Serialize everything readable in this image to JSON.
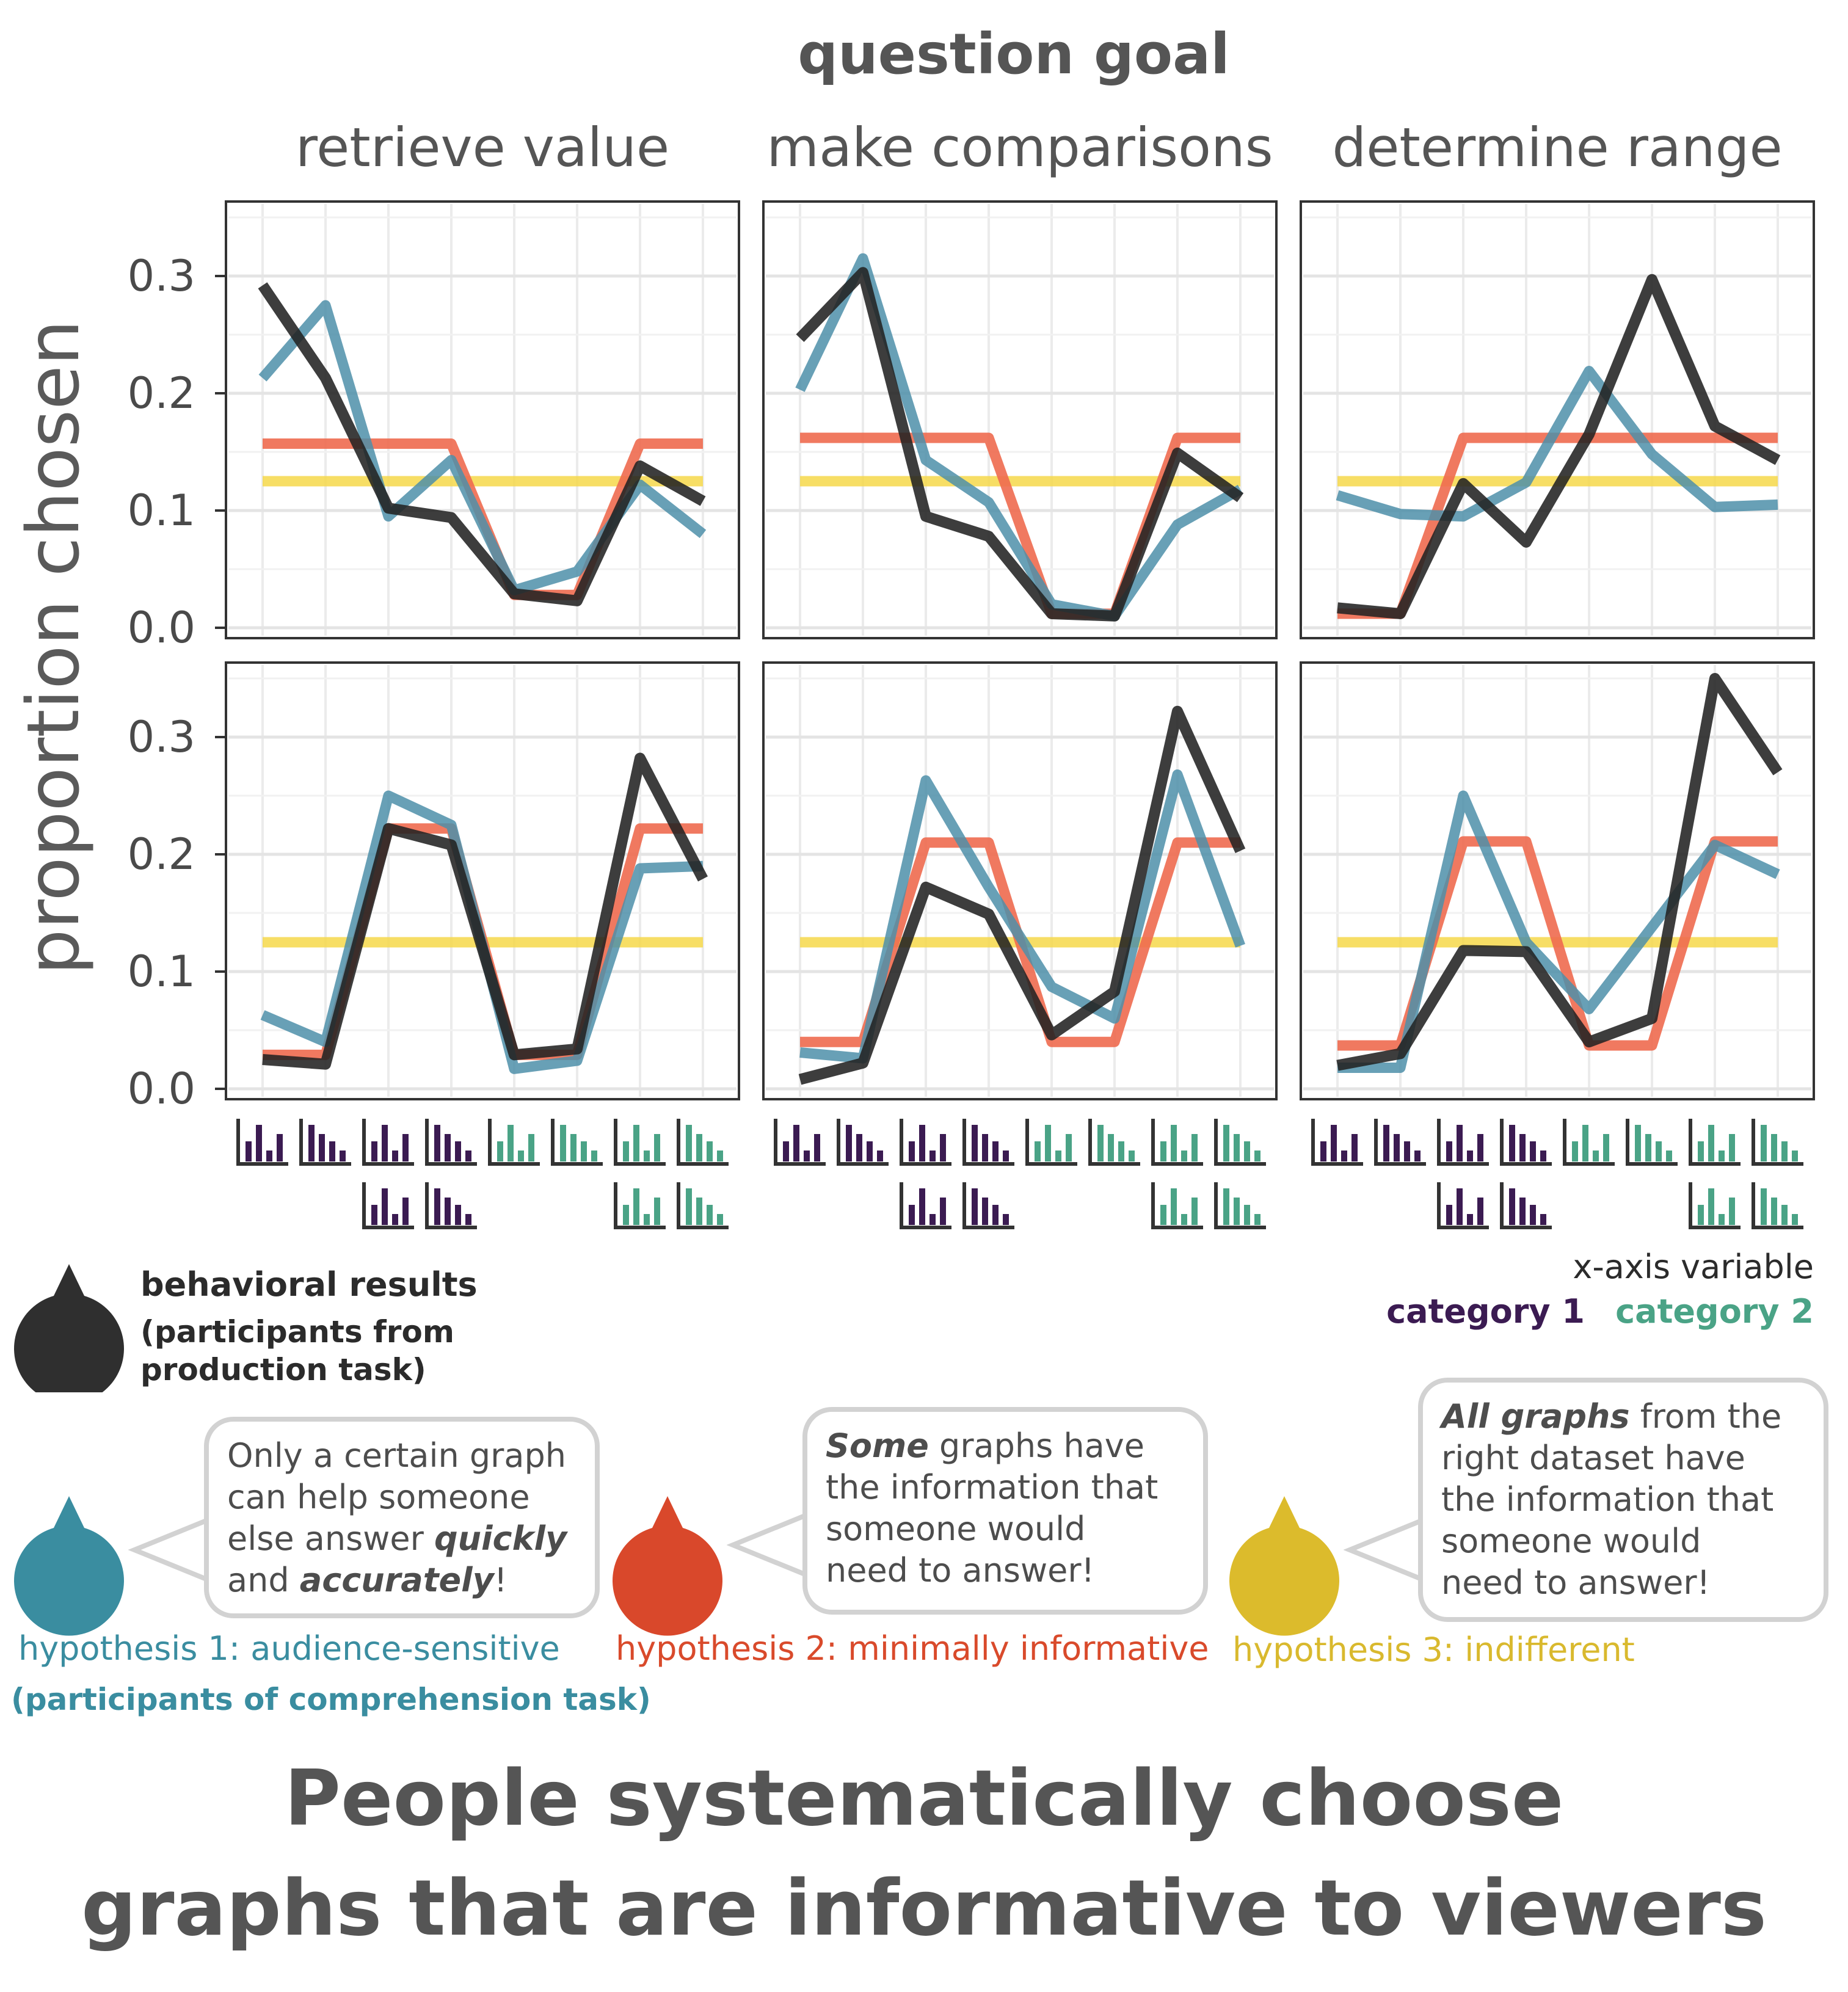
{
  "header": {
    "title": "question goal"
  },
  "y_axis_label": "proportion chosen",
  "y_ticks": [
    "0.0",
    "0.1",
    "0.2",
    "0.3"
  ],
  "panel_titles": [
    "retrieve value",
    "make comparisons",
    "determine range"
  ],
  "colors": {
    "behavioral": "#222222",
    "hypothesis1": "#4e8fa9",
    "hypothesis2": "#ee6a4f",
    "hypothesis3": "#f6d84a",
    "category1": "#3b1b52",
    "category2": "#4aa386",
    "h1_text": "#3a8da0",
    "h2_text": "#d94a2b",
    "h3_text": "#d9b92e"
  },
  "chart_data": {
    "type": "line",
    "ylim": [
      0,
      0.35
    ],
    "grid": true,
    "x_categories": 8,
    "panels": [
      {
        "row": 1,
        "col": 1,
        "goal": "retrieve value",
        "series": [
          {
            "key": "hypothesis3",
            "values": [
              0.125,
              0.125,
              0.125,
              0.125,
              0.125,
              0.125,
              0.125,
              0.125
            ]
          },
          {
            "key": "hypothesis2",
            "values": [
              0.157,
              0.157,
              0.157,
              0.157,
              0.028,
              0.028,
              0.157,
              0.157
            ]
          },
          {
            "key": "hypothesis1",
            "values": [
              0.213,
              0.275,
              0.095,
              0.143,
              0.032,
              0.048,
              0.122,
              0.08
            ]
          },
          {
            "key": "behavioral",
            "values": [
              0.292,
              0.213,
              0.102,
              0.094,
              0.029,
              0.023,
              0.138,
              0.108
            ]
          }
        ]
      },
      {
        "row": 1,
        "col": 2,
        "goal": "make comparisons",
        "series": [
          {
            "key": "hypothesis3",
            "values": [
              0.125,
              0.125,
              0.125,
              0.125,
              0.125,
              0.125,
              0.125,
              0.125
            ]
          },
          {
            "key": "hypothesis2",
            "values": [
              0.162,
              0.162,
              0.162,
              0.162,
              0.012,
              0.012,
              0.162,
              0.162
            ]
          },
          {
            "key": "hypothesis1",
            "values": [
              0.203,
              0.315,
              0.143,
              0.107,
              0.02,
              0.01,
              0.088,
              0.118
            ]
          },
          {
            "key": "behavioral",
            "values": [
              0.247,
              0.303,
              0.095,
              0.078,
              0.012,
              0.01,
              0.149,
              0.111
            ]
          }
        ]
      },
      {
        "row": 1,
        "col": 3,
        "goal": "determine range",
        "series": [
          {
            "key": "hypothesis3",
            "values": [
              0.125,
              0.125,
              0.125,
              0.125,
              0.125,
              0.125,
              0.125,
              0.125
            ]
          },
          {
            "key": "hypothesis2",
            "values": [
              0.012,
              0.012,
              0.162,
              0.162,
              0.162,
              0.162,
              0.162,
              0.162
            ]
          },
          {
            "key": "hypothesis1",
            "values": [
              0.113,
              0.097,
              0.095,
              0.124,
              0.219,
              0.148,
              0.103,
              0.105
            ]
          },
          {
            "key": "behavioral",
            "values": [
              0.017,
              0.012,
              0.123,
              0.073,
              0.165,
              0.297,
              0.172,
              0.143
            ]
          }
        ]
      },
      {
        "row": 2,
        "col": 1,
        "goal": "retrieve value",
        "series": [
          {
            "key": "hypothesis3",
            "values": [
              0.125,
              0.125,
              0.125,
              0.125,
              0.125,
              0.125,
              0.125,
              0.125
            ]
          },
          {
            "key": "hypothesis2",
            "values": [
              0.029,
              0.029,
              0.222,
              0.222,
              0.029,
              0.029,
              0.222,
              0.222
            ]
          },
          {
            "key": "hypothesis1",
            "values": [
              0.063,
              0.04,
              0.25,
              0.225,
              0.017,
              0.024,
              0.188,
              0.19
            ]
          },
          {
            "key": "behavioral",
            "values": [
              0.025,
              0.021,
              0.222,
              0.208,
              0.029,
              0.034,
              0.282,
              0.179
            ]
          }
        ]
      },
      {
        "row": 2,
        "col": 2,
        "goal": "make comparisons",
        "series": [
          {
            "key": "hypothesis3",
            "values": [
              0.125,
              0.125,
              0.125,
              0.125,
              0.125,
              0.125,
              0.125,
              0.125
            ]
          },
          {
            "key": "hypothesis2",
            "values": [
              0.04,
              0.04,
              0.21,
              0.21,
              0.04,
              0.04,
              0.21,
              0.21
            ]
          },
          {
            "key": "hypothesis1",
            "values": [
              0.031,
              0.026,
              0.263,
              0.172,
              0.087,
              0.06,
              0.268,
              0.122
            ]
          },
          {
            "key": "behavioral",
            "values": [
              0.008,
              0.022,
              0.172,
              0.149,
              0.046,
              0.083,
              0.322,
              0.203
            ]
          }
        ]
      },
      {
        "row": 2,
        "col": 3,
        "goal": "determine range",
        "series": [
          {
            "key": "hypothesis3",
            "values": [
              0.125,
              0.125,
              0.125,
              0.125,
              0.125,
              0.125,
              0.125,
              0.125
            ]
          },
          {
            "key": "hypothesis2",
            "values": [
              0.037,
              0.037,
              0.211,
              0.211,
              0.037,
              0.037,
              0.211,
              0.211
            ]
          },
          {
            "key": "hypothesis1",
            "values": [
              0.018,
              0.018,
              0.25,
              0.125,
              0.068,
              0.138,
              0.208,
              0.183
            ]
          },
          {
            "key": "behavioral",
            "values": [
              0.02,
              0.03,
              0.118,
              0.117,
              0.04,
              0.06,
              0.35,
              0.27
            ]
          }
        ]
      }
    ]
  },
  "x_axis_icons": {
    "rows": [
      [
        "category1",
        "category1",
        "category1",
        "category1",
        "category2",
        "category2",
        "category2",
        "category2"
      ],
      [
        null,
        null,
        "category1",
        "category1",
        null,
        null,
        "category2",
        "category2"
      ]
    ],
    "icon_shapes": [
      "grouped",
      "sorted"
    ]
  },
  "legend": {
    "behavioral": {
      "title": "behavioral results",
      "subtitle_line1": "(participants from",
      "subtitle_line2": "production task)"
    },
    "x_axis": {
      "title": "x-axis variable",
      "category1": "category 1",
      "category2": "category 2"
    }
  },
  "hypotheses": [
    {
      "label": "hypothesis 1: audience-sensitive",
      "sublabel": "(participants of comprehension task)",
      "bubble": [
        [
          {
            "t": "Only a certain graph"
          }
        ],
        [
          {
            "t": "can help someone"
          }
        ],
        [
          {
            "t": "else answer "
          },
          {
            "t": "quickly",
            "s": "bi"
          }
        ],
        [
          {
            "t": "and "
          },
          {
            "t": "accurately",
            "s": "bi"
          },
          {
            "t": "!"
          }
        ]
      ]
    },
    {
      "label": "hypothesis 2: minimally informative",
      "bubble": [
        [
          {
            "t": "Some",
            "s": "bi"
          },
          {
            "t": " graphs have"
          }
        ],
        [
          {
            "t": "the information that"
          }
        ],
        [
          {
            "t": "someone would"
          }
        ],
        [
          {
            "t": "need to answer!"
          }
        ]
      ]
    },
    {
      "label": "hypothesis 3: indifferent",
      "bubble": [
        [
          {
            "t": "All graphs",
            "s": "bi"
          },
          {
            "t": " from the"
          }
        ],
        [
          {
            "t": "right dataset have"
          }
        ],
        [
          {
            "t": "the information that"
          }
        ],
        [
          {
            "t": "someone would"
          }
        ],
        [
          {
            "t": "need to answer!"
          }
        ]
      ]
    }
  ],
  "conclusion": {
    "line1": "People systematically choose",
    "line2": "graphs that are informative to viewers"
  }
}
